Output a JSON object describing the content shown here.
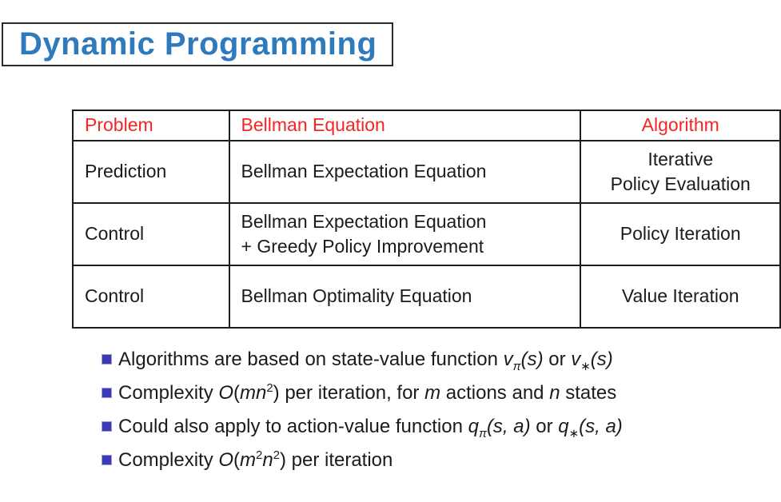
{
  "header": {
    "title": "Dynamic Programming"
  },
  "colors": {
    "title_blue": "#2f79bd",
    "table_header_red": "#f42525",
    "bullet_square_blue": "#3a3ab4",
    "border_dark": "#1e1e1e"
  },
  "table": {
    "headers": [
      "Problem",
      "Bellman Equation",
      "Algorithm"
    ],
    "rows": [
      {
        "cells": [
          "Prediction",
          "Bellman Expectation Equation",
          "Iterative\nPolicy Evaluation"
        ]
      },
      {
        "cells": [
          "Control",
          "Bellman Expectation Equation\n+ Greedy Policy Improvement",
          "Policy Iteration"
        ]
      },
      {
        "cells": [
          "Control",
          "Bellman Optimality Equation",
          "Value Iteration"
        ]
      }
    ]
  },
  "bullets": [
    {
      "segments": [
        {
          "text": "Algorithms are based on state-value function "
        },
        {
          "text": "v"
        },
        {
          "text": "π"
        },
        {
          "text": "(s)"
        },
        {
          "text": " or "
        },
        {
          "text": "v"
        },
        {
          "text": "∗"
        },
        {
          "text": "(s)"
        }
      ]
    },
    {
      "segments": [
        {
          "text": "Complexity "
        },
        {
          "text": "O"
        },
        {
          "text": "("
        },
        {
          "text": "mn"
        },
        {
          "text": "2"
        },
        {
          "text": ") per iteration, for "
        },
        {
          "text": "m"
        },
        {
          "text": " actions and "
        },
        {
          "text": "n"
        },
        {
          "text": " states"
        }
      ]
    },
    {
      "segments": [
        {
          "text": "Could also apply to action-value function "
        },
        {
          "text": "q"
        },
        {
          "text": "π"
        },
        {
          "text": "(s, a)"
        },
        {
          "text": " or "
        },
        {
          "text": "q"
        },
        {
          "text": "∗"
        },
        {
          "text": "(s, a)"
        }
      ]
    },
    {
      "segments": [
        {
          "text": "Complexity "
        },
        {
          "text": "O"
        },
        {
          "text": "("
        },
        {
          "text": "m"
        },
        {
          "text": "2"
        },
        {
          "text": "n"
        },
        {
          "text": "2"
        },
        {
          "text": ") per iteration"
        }
      ]
    }
  ]
}
